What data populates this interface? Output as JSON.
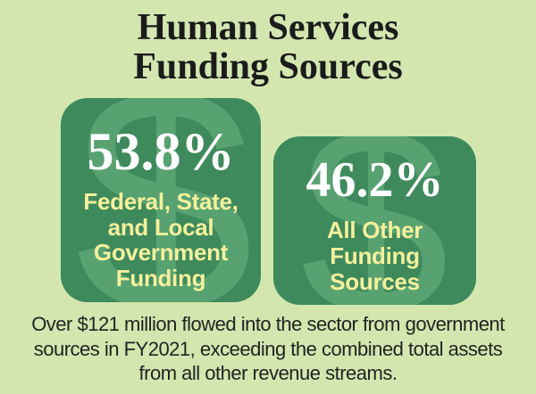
{
  "colors": {
    "background": "#d3e6b0",
    "card_green": "#3e8a5c",
    "watermark_green": "#58a271",
    "label_yellow": "#f4f09c",
    "percent_white": "#ffffff",
    "title_text": "#1b1b1b",
    "caption_text": "#20241f"
  },
  "title": {
    "line1": "Human Services",
    "line2": "Funding Sources"
  },
  "cards": [
    {
      "percent": "53.8%",
      "watermark_glyph": "$",
      "label_lines": [
        "Federal, State,",
        "and Local",
        "Government",
        "Funding"
      ]
    },
    {
      "percent": "46.2%",
      "watermark_glyph": "$",
      "label_lines": [
        "All Other",
        "Funding",
        "Sources"
      ]
    }
  ],
  "caption": {
    "lines": [
      "Over $121 million flowed into the sector from government",
      "sources in FY2021, exceeding the combined total assets",
      "from all other revenue streams."
    ],
    "full_text": "Over $121 million flowed into the sector from government sources in FY2021, exceeding the combined total assets from all other revenue streams."
  },
  "chart_data": {
    "type": "pie",
    "title": "Human Services Funding Sources",
    "labels": [
      "Federal, State, and Local Government Funding",
      "All Other Funding Sources"
    ],
    "values": [
      53.8,
      46.2
    ],
    "unit": "%",
    "legend_position": "none",
    "annotations": [
      "Over $121 million flowed into the sector from government sources in FY2021, exceeding the combined total assets from all other revenue streams."
    ]
  }
}
